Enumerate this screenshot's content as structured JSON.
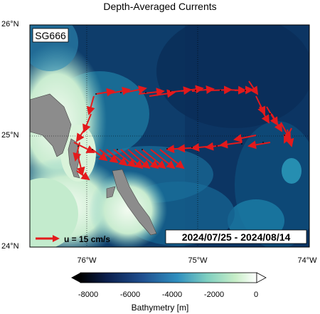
{
  "title": "Depth-Averaged Currents",
  "glider_label": "SG666",
  "scale_arrow_label": "u = 15 cm/s",
  "date_range": "2024/07/25 - 2024/08/14",
  "lat_labels": [
    "26°N",
    "25°N",
    "24°N"
  ],
  "lon_labels": [
    "76°W",
    "75°W",
    "74°W"
  ],
  "colorbar": {
    "label": "Bathymetry [m]",
    "ticks": [
      "-8000",
      "-6000",
      "-4000",
      "-2000",
      "0"
    ]
  },
  "colors": {
    "arrow": "#e31a1c",
    "land": "#8c8c8c",
    "deep_ocean": "#0a2a5a",
    "shelf": "#e8f7e8"
  },
  "icons": [
    "scale-arrow-icon"
  ]
}
